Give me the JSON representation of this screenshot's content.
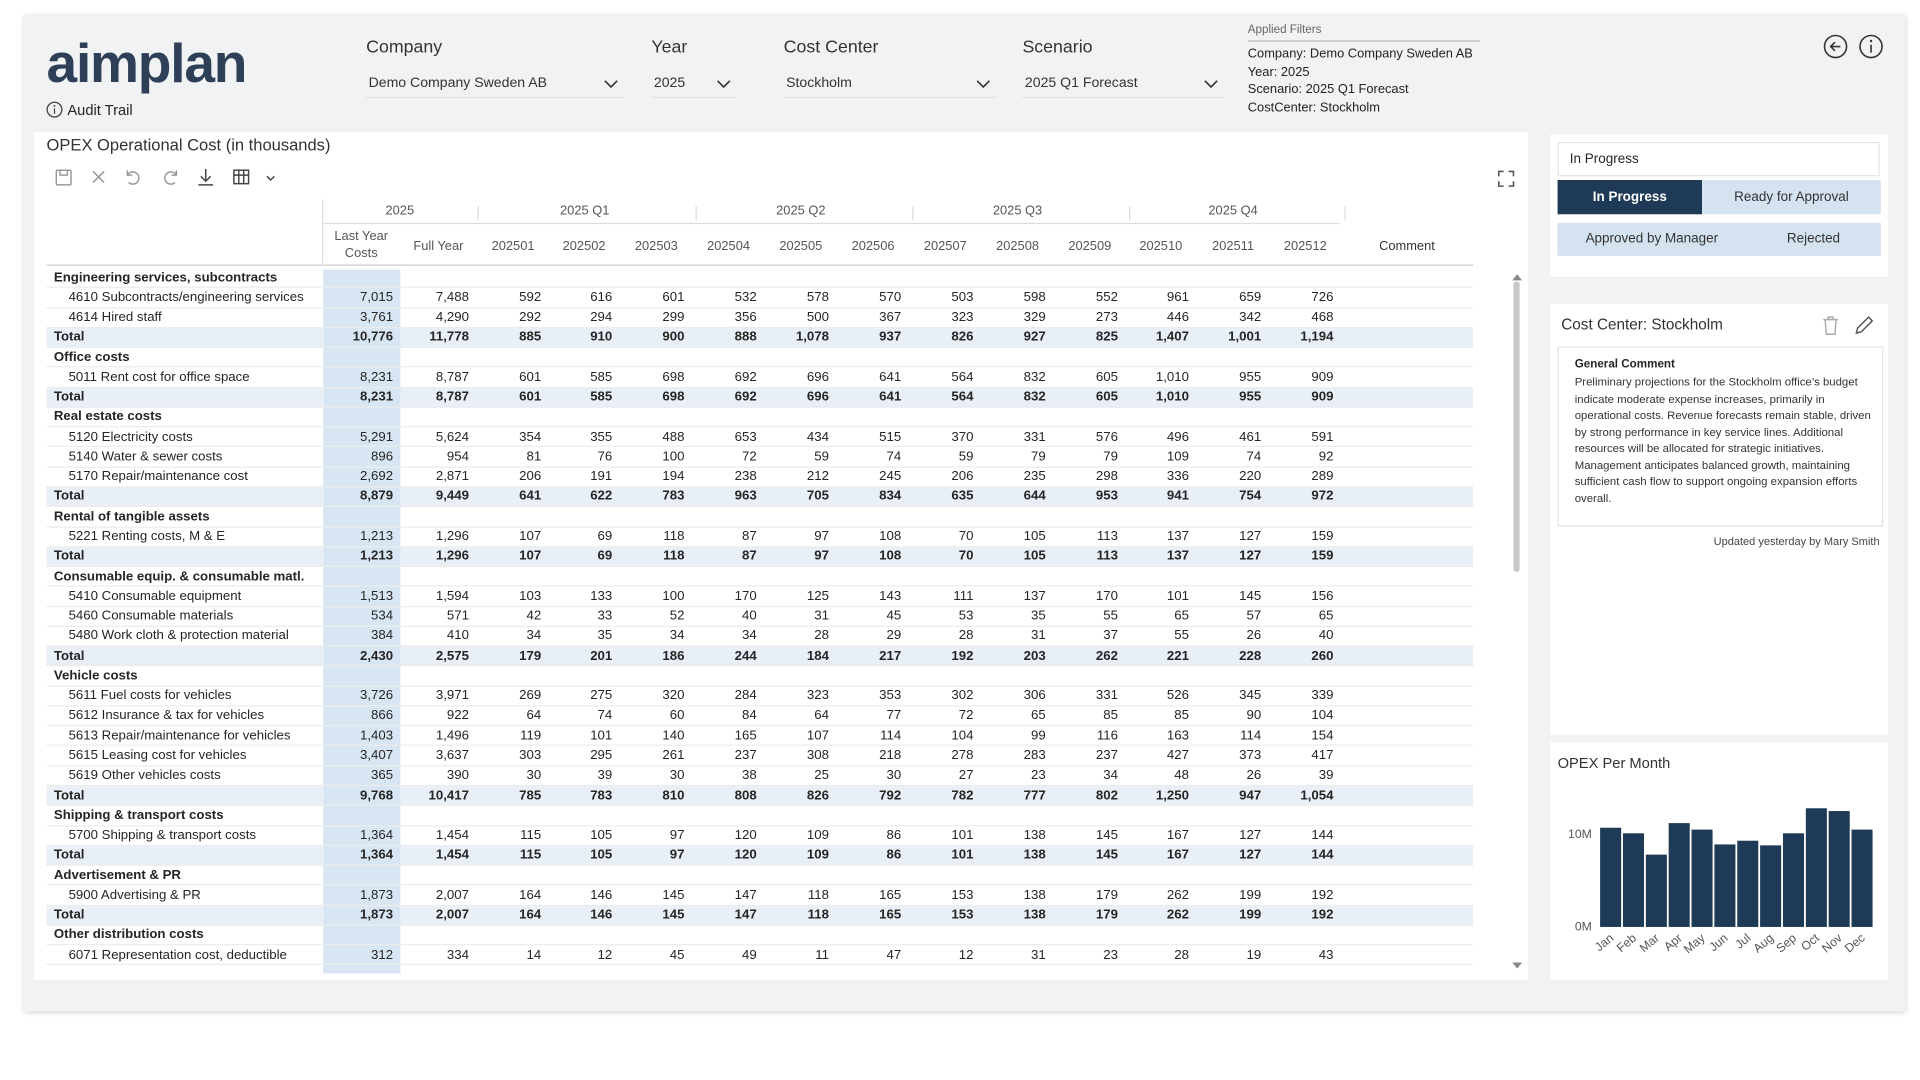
{
  "header": {
    "logo": "aimplan",
    "audit_trail": "Audit Trail"
  },
  "filters": [
    {
      "label": "Company",
      "value": "Demo Company Sweden AB"
    },
    {
      "label": "Year",
      "value": "2025"
    },
    {
      "label": "Cost Center",
      "value": "Stockholm"
    },
    {
      "label": "Scenario",
      "value": "2025 Q1 Forecast"
    }
  ],
  "applied_filters": {
    "title": "Applied Filters",
    "lines": [
      "Company: Demo Company Sweden AB",
      "Year: 2025",
      "Scenario: 2025 Q1 Forecast",
      "CostCenter: Stockholm"
    ]
  },
  "table": {
    "title": "OPEX Operational Cost (in thousands)",
    "groups": [
      "2025",
      "2025 Q1",
      "2025 Q2",
      "2025 Q3",
      "2025 Q4"
    ],
    "columns": [
      "Last Year Costs",
      "Full Year",
      "202501",
      "202502",
      "202503",
      "202504",
      "202505",
      "202506",
      "202507",
      "202508",
      "202509",
      "202510",
      "202511",
      "202512",
      "Comment"
    ],
    "sections": [
      {
        "title": "Engineering services, subcontracts",
        "rows": [
          {
            "label": "4610 Subcontracts/engineering services",
            "values": [
              "7,015",
              "7,488",
              "592",
              "616",
              "601",
              "532",
              "578",
              "570",
              "503",
              "598",
              "552",
              "961",
              "659",
              "726"
            ]
          },
          {
            "label": "4614 Hired staff",
            "values": [
              "3,761",
              "4,290",
              "292",
              "294",
              "299",
              "356",
              "500",
              "367",
              "323",
              "329",
              "273",
              "446",
              "342",
              "468"
            ]
          }
        ],
        "total": {
          "label": "Total",
          "values": [
            "10,776",
            "11,778",
            "885",
            "910",
            "900",
            "888",
            "1,078",
            "937",
            "826",
            "927",
            "825",
            "1,407",
            "1,001",
            "1,194"
          ]
        }
      },
      {
        "title": "Office costs",
        "rows": [
          {
            "label": "5011 Rent cost for office space",
            "values": [
              "8,231",
              "8,787",
              "601",
              "585",
              "698",
              "692",
              "696",
              "641",
              "564",
              "832",
              "605",
              "1,010",
              "955",
              "909"
            ]
          }
        ],
        "total": {
          "label": "Total",
          "values": [
            "8,231",
            "8,787",
            "601",
            "585",
            "698",
            "692",
            "696",
            "641",
            "564",
            "832",
            "605",
            "1,010",
            "955",
            "909"
          ]
        }
      },
      {
        "title": "Real estate costs",
        "rows": [
          {
            "label": "5120 Electricity costs",
            "values": [
              "5,291",
              "5,624",
              "354",
              "355",
              "488",
              "653",
              "434",
              "515",
              "370",
              "331",
              "576",
              "496",
              "461",
              "591"
            ]
          },
          {
            "label": "5140 Water & sewer costs",
            "values": [
              "896",
              "954",
              "81",
              "76",
              "100",
              "72",
              "59",
              "74",
              "59",
              "79",
              "79",
              "109",
              "74",
              "92"
            ]
          },
          {
            "label": "5170 Repair/maintenance cost",
            "values": [
              "2,692",
              "2,871",
              "206",
              "191",
              "194",
              "238",
              "212",
              "245",
              "206",
              "235",
              "298",
              "336",
              "220",
              "289"
            ]
          }
        ],
        "total": {
          "label": "Total",
          "values": [
            "8,879",
            "9,449",
            "641",
            "622",
            "783",
            "963",
            "705",
            "834",
            "635",
            "644",
            "953",
            "941",
            "754",
            "972"
          ]
        }
      },
      {
        "title": "Rental of tangible assets",
        "rows": [
          {
            "label": "5221 Renting costs, M & E",
            "values": [
              "1,213",
              "1,296",
              "107",
              "69",
              "118",
              "87",
              "97",
              "108",
              "70",
              "105",
              "113",
              "137",
              "127",
              "159"
            ]
          }
        ],
        "total": {
          "label": "Total",
          "values": [
            "1,213",
            "1,296",
            "107",
            "69",
            "118",
            "87",
            "97",
            "108",
            "70",
            "105",
            "113",
            "137",
            "127",
            "159"
          ]
        }
      },
      {
        "title": "Consumable equip. & consumable matl.",
        "rows": [
          {
            "label": "5410 Consumable equipment",
            "values": [
              "1,513",
              "1,594",
              "103",
              "133",
              "100",
              "170",
              "125",
              "143",
              "111",
              "137",
              "170",
              "101",
              "145",
              "156"
            ]
          },
          {
            "label": "5460 Consumable materials",
            "values": [
              "534",
              "571",
              "42",
              "33",
              "52",
              "40",
              "31",
              "45",
              "53",
              "35",
              "55",
              "65",
              "57",
              "65"
            ]
          },
          {
            "label": "5480 Work cloth & protection material",
            "values": [
              "384",
              "410",
              "34",
              "35",
              "34",
              "34",
              "28",
              "29",
              "28",
              "31",
              "37",
              "55",
              "26",
              "40"
            ]
          }
        ],
        "total": {
          "label": "Total",
          "values": [
            "2,430",
            "2,575",
            "179",
            "201",
            "186",
            "244",
            "184",
            "217",
            "192",
            "203",
            "262",
            "221",
            "228",
            "260"
          ]
        }
      },
      {
        "title": "Vehicle costs",
        "rows": [
          {
            "label": "5611 Fuel costs for vehicles",
            "values": [
              "3,726",
              "3,971",
              "269",
              "275",
              "320",
              "284",
              "323",
              "353",
              "302",
              "306",
              "331",
              "526",
              "345",
              "339"
            ]
          },
          {
            "label": "5612 Insurance & tax for vehicles",
            "values": [
              "866",
              "922",
              "64",
              "74",
              "60",
              "84",
              "64",
              "77",
              "72",
              "65",
              "85",
              "85",
              "90",
              "104"
            ]
          },
          {
            "label": "5613 Repair/maintenance for vehicles",
            "values": [
              "1,403",
              "1,496",
              "119",
              "101",
              "140",
              "165",
              "107",
              "114",
              "104",
              "99",
              "116",
              "163",
              "114",
              "154"
            ]
          },
          {
            "label": "5615 Leasing cost for vehicles",
            "values": [
              "3,407",
              "3,637",
              "303",
              "295",
              "261",
              "237",
              "308",
              "218",
              "278",
              "283",
              "237",
              "427",
              "373",
              "417"
            ]
          },
          {
            "label": "5619 Other vehicles costs",
            "values": [
              "365",
              "390",
              "30",
              "39",
              "30",
              "38",
              "25",
              "30",
              "27",
              "23",
              "34",
              "48",
              "26",
              "39"
            ]
          }
        ],
        "total": {
          "label": "Total",
          "values": [
            "9,768",
            "10,417",
            "785",
            "783",
            "810",
            "808",
            "826",
            "792",
            "782",
            "777",
            "802",
            "1,250",
            "947",
            "1,054"
          ]
        }
      },
      {
        "title": "Shipping & transport costs",
        "rows": [
          {
            "label": "5700 Shipping & transport costs",
            "values": [
              "1,364",
              "1,454",
              "115",
              "105",
              "97",
              "120",
              "109",
              "86",
              "101",
              "138",
              "145",
              "167",
              "127",
              "144"
            ]
          }
        ],
        "total": {
          "label": "Total",
          "values": [
            "1,364",
            "1,454",
            "115",
            "105",
            "97",
            "120",
            "109",
            "86",
            "101",
            "138",
            "145",
            "167",
            "127",
            "144"
          ]
        }
      },
      {
        "title": "Advertisement & PR",
        "rows": [
          {
            "label": "5900 Advertising & PR",
            "values": [
              "1,873",
              "2,007",
              "164",
              "146",
              "145",
              "147",
              "118",
              "165",
              "153",
              "138",
              "179",
              "262",
              "199",
              "192"
            ]
          }
        ],
        "total": {
          "label": "Total",
          "values": [
            "1,873",
            "2,007",
            "164",
            "146",
            "145",
            "147",
            "118",
            "165",
            "153",
            "138",
            "179",
            "262",
            "199",
            "192"
          ]
        }
      },
      {
        "title": "Other distribution costs",
        "rows": [
          {
            "label": "6071 Representation cost, deductible",
            "values": [
              "312",
              "334",
              "14",
              "12",
              "45",
              "49",
              "11",
              "47",
              "12",
              "31",
              "23",
              "28",
              "19",
              "43"
            ]
          }
        ]
      }
    ]
  },
  "status": {
    "dropdown": "In Progress",
    "buttons": [
      "In Progress",
      "Ready for Approval",
      "Approved by Manager",
      "Rejected"
    ]
  },
  "comment": {
    "title": "Cost Center: Stockholm",
    "heading": "General Comment",
    "text": "Preliminary projections for the Stockholm office’s budget indicate moderate expense increases, primarily in operational costs. Revenue forecasts remain stable, driven by strong performance in key service lines. Additional resources will be allocated for strategic initiatives. Management anticipates balanced growth, maintaining sufficient cash flow to support ongoing expansion efforts overall.",
    "footer": "Updated yesterday by Mary Smith"
  },
  "chart_data": {
    "type": "bar",
    "title": "OPEX Per Month",
    "categories": [
      "Jan",
      "Feb",
      "Mar",
      "Apr",
      "May",
      "Jun",
      "Jul",
      "Aug",
      "Sep",
      "Oct",
      "Nov",
      "Dec"
    ],
    "values": [
      10.7,
      10.1,
      7.8,
      11.2,
      10.5,
      8.9,
      9.3,
      8.8,
      10.1,
      12.8,
      12.5,
      10.5
    ],
    "color": "#1e3a56",
    "ylim": [
      0,
      14
    ],
    "yticks": [
      {
        "value": 0,
        "label": "0M"
      },
      {
        "value": 10,
        "label": "10M"
      }
    ]
  }
}
